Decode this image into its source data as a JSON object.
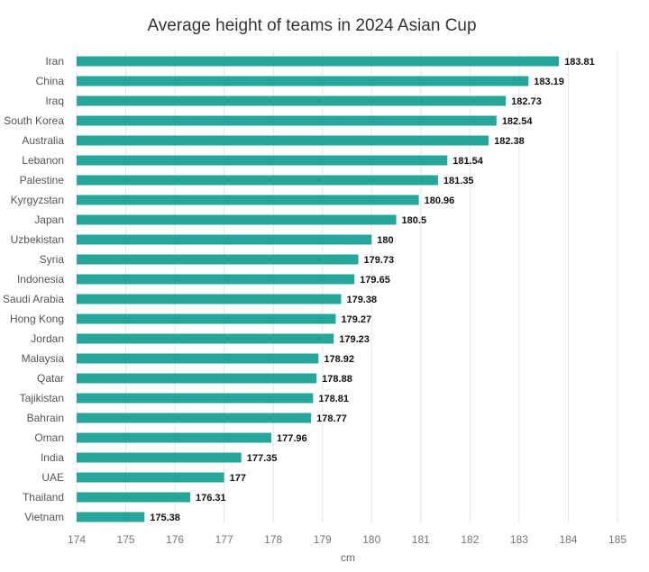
{
  "chart_data": {
    "type": "bar",
    "orientation": "horizontal",
    "title": "Average height of teams in 2024 Asian Cup",
    "xlabel": "cm",
    "ylabel": "",
    "xlim": [
      174,
      185
    ],
    "xticks": [
      "174",
      "175",
      "176",
      "177",
      "178",
      "179",
      "180",
      "181",
      "182",
      "183",
      "184",
      "185"
    ],
    "grid": true,
    "bar_color": "#26a69a",
    "categories": [
      "Iran",
      "China",
      "Iraq",
      "South Korea",
      "Australia",
      "Lebanon",
      "Palestine",
      "Kyrgyzstan",
      "Japan",
      "Uzbekistan",
      "Syria",
      "Indonesia",
      "Saudi Arabia",
      "Hong Kong",
      "Jordan",
      "Malaysia",
      "Qatar",
      "Tajikistan",
      "Bahrain",
      "Oman",
      "India",
      "UAE",
      "Thailand",
      "Vietnam"
    ],
    "values": [
      183.81,
      183.19,
      182.73,
      182.54,
      182.38,
      181.54,
      181.35,
      180.96,
      180.5,
      180,
      179.73,
      179.65,
      179.38,
      179.27,
      179.23,
      178.92,
      178.88,
      178.81,
      178.77,
      177.96,
      177.35,
      177,
      176.31,
      175.38
    ],
    "data_labels": [
      "183.81",
      "183.19",
      "182.73",
      "182.54",
      "182.38",
      "181.54",
      "181.35",
      "180.96",
      "180.5",
      "180",
      "179.73",
      "179.65",
      "179.38",
      "179.27",
      "179.23",
      "178.92",
      "178.88",
      "178.81",
      "178.77",
      "177.96",
      "177.35",
      "177",
      "176.31",
      "175.38"
    ]
  }
}
